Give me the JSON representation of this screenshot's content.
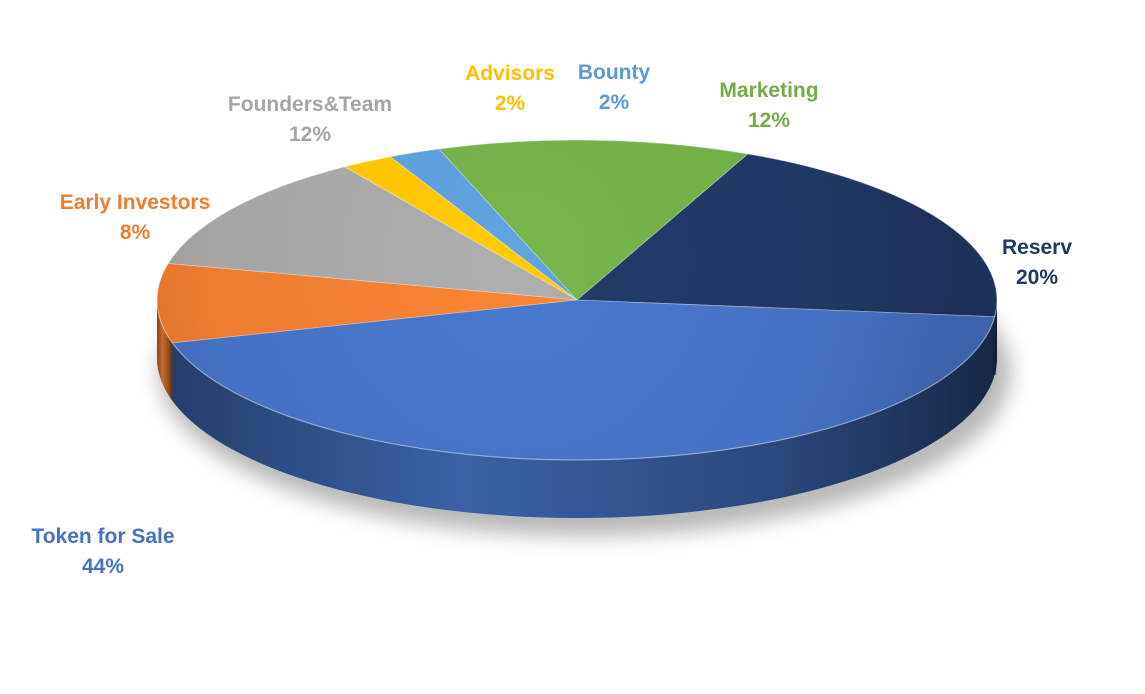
{
  "chart_data": {
    "type": "pie",
    "title": "",
    "style": "3d",
    "start_angle_deg": -6,
    "direction": "counterclockwise",
    "slices": [
      {
        "label": "Reserv",
        "value": 20,
        "value_label": "20%",
        "color": "#203864",
        "label_color": "#203864"
      },
      {
        "label": "Marketing",
        "value": 12,
        "value_label": "12%",
        "color": "#70AD47",
        "label_color": "#70AD47"
      },
      {
        "label": "Bounty",
        "value": 2,
        "value_label": "2%",
        "color": "#5B9BD5",
        "label_color": "#5B9BD5"
      },
      {
        "label": "Advisors",
        "value": 2,
        "value_label": "2%",
        "color": "#FFC000",
        "label_color": "#FFC000"
      },
      {
        "label": "Founders&Team",
        "value": 12,
        "value_label": "12%",
        "color": "#A5A5A5",
        "label_color": "#A5A5A5"
      },
      {
        "label": "Early Investors",
        "value": 8,
        "value_label": "8%",
        "color": "#ED7D31",
        "label_color": "#ED7D31"
      },
      {
        "label": "Token for Sale",
        "value": 44,
        "value_label": "44%",
        "color": "#4472C4",
        "label_color": "#4472C4"
      }
    ]
  }
}
